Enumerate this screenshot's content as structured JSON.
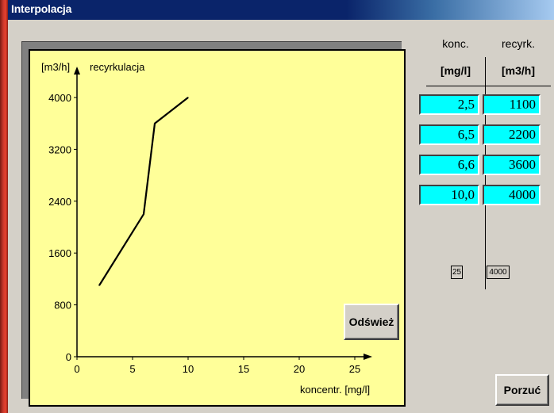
{
  "window": {
    "title": "Interpolacja"
  },
  "table": {
    "col1_header": "konc.",
    "col2_header": "recyrk.",
    "col1_unit": "[mg/l]",
    "col2_unit": "[m3/h]",
    "rows": [
      {
        "konc": "2,5",
        "recyrk": "1100"
      },
      {
        "konc": "6,5",
        "recyrk": "2200"
      },
      {
        "konc": "6,6",
        "recyrk": "3600"
      },
      {
        "konc": "10,0",
        "recyrk": "4000"
      }
    ],
    "x_max_box": "25",
    "y_max_box": "4000"
  },
  "buttons": {
    "refresh": "Odśwież",
    "quit": "Porzuć"
  },
  "colors": {
    "panel": "#ffff99",
    "cell": "#00ffff",
    "window": "#d4d0c8",
    "titlebar": "#0a246a"
  },
  "chart_data": {
    "type": "line",
    "title": "",
    "ylabel": "recyrkulacja",
    "y_unit": "[m3/h]",
    "xlabel": "koncentr. [mg/l]",
    "xlim": [
      0,
      25
    ],
    "ylim": [
      0,
      4000
    ],
    "x_ticks": [
      0,
      5,
      10,
      15,
      20,
      25
    ],
    "y_ticks": [
      0,
      800,
      1600,
      2400,
      3200,
      4000
    ],
    "series": [
      {
        "x": [
          2,
          6,
          7,
          10
        ],
        "y": [
          1100,
          2200,
          3600,
          4000
        ]
      }
    ],
    "grid": false
  }
}
